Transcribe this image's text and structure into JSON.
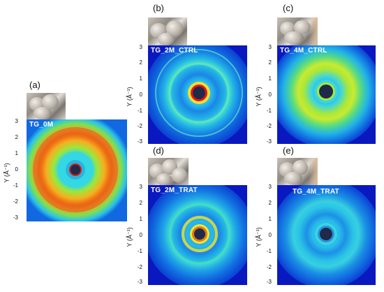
{
  "axis": {
    "ylabel": "Y (Å⁻¹)",
    "yticks": [
      "3",
      "2",
      "1",
      "0",
      "-1",
      "-2",
      "-3"
    ]
  },
  "panels": [
    {
      "letter": "(a)",
      "title": "TG_0M"
    },
    {
      "letter": "(b)",
      "title": "TG_2M_CTRL"
    },
    {
      "letter": "(c)",
      "title": "TG_4M_CTRL"
    },
    {
      "letter": "(d)",
      "title": "TG_2M_TRAT"
    },
    {
      "letter": "(e)",
      "title": "TG_4M_TRAT"
    }
  ],
  "colors": {
    "background_blue": "#0a10b8",
    "ring_cyan": "#27d6e8",
    "ring_green": "#8fe83a",
    "ring_yellow": "#f2e82a",
    "ring_orange": "#f07818",
    "ring_red": "#d81c10",
    "center_dark": "#1f2a4a"
  }
}
